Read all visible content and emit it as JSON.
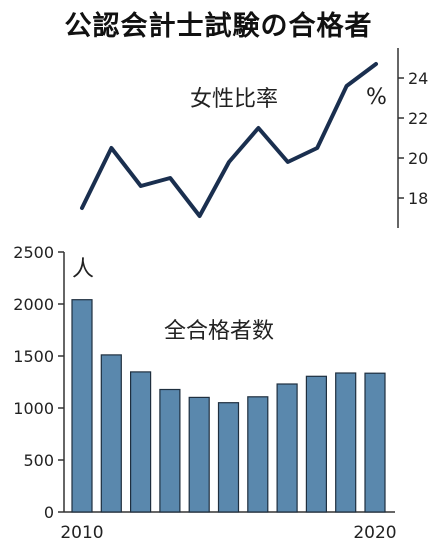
{
  "title": "公認会計士試験の合格者",
  "chart_data": [
    {
      "type": "line",
      "label": "女性比率",
      "unit": "%",
      "x": [
        2010,
        2011,
        2012,
        2013,
        2014,
        2015,
        2016,
        2017,
        2018,
        2019,
        2020
      ],
      "values": [
        17.5,
        20.5,
        18.6,
        19.0,
        17.1,
        19.8,
        21.5,
        19.8,
        20.5,
        23.6,
        24.7
      ],
      "ylim": [
        16.5,
        25.5
      ],
      "yticks": [
        "18",
        "20",
        "22",
        "24"
      ],
      "color": "#1a2f4f"
    },
    {
      "type": "bar",
      "label": "全合格者数",
      "unit": "人",
      "x": [
        2010,
        2011,
        2012,
        2013,
        2014,
        2015,
        2016,
        2017,
        2018,
        2019,
        2020
      ],
      "values": [
        2041,
        1511,
        1347,
        1178,
        1102,
        1051,
        1108,
        1231,
        1305,
        1337,
        1335
      ],
      "ylim": [
        0,
        2500
      ],
      "yticks": [
        "0",
        "500",
        "1000",
        "1500",
        "2000",
        "2500"
      ],
      "xticks": [
        "2010",
        "2020"
      ],
      "color": "#5a88ad"
    }
  ]
}
